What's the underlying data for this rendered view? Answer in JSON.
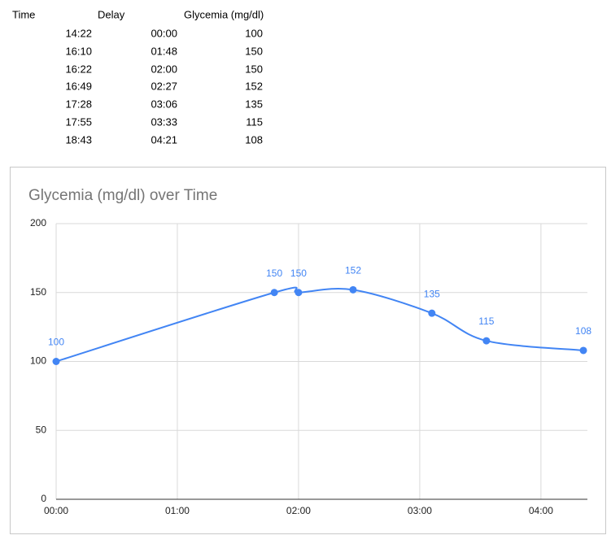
{
  "table": {
    "header": [
      "Time",
      "Delay",
      "Glycemia (mg/dl)"
    ],
    "rows": [
      [
        "14:22",
        "00:00",
        "100"
      ],
      [
        "16:10",
        "01:48",
        "150"
      ],
      [
        "16:22",
        "02:00",
        "150"
      ],
      [
        "16:49",
        "02:27",
        "152"
      ],
      [
        "17:28",
        "03:06",
        "135"
      ],
      [
        "17:55",
        "03:33",
        "115"
      ],
      [
        "18:43",
        "04:21",
        "108"
      ]
    ]
  },
  "chart_data": {
    "type": "line",
    "title": "Glycemia (mg/dl) over Time",
    "x": [
      0,
      108,
      120,
      147,
      186,
      213,
      261
    ],
    "series": [
      {
        "name": "Glycemia (mg/dl)",
        "color": "#4285f4",
        "values": [
          100,
          150,
          150,
          152,
          135,
          115,
          108
        ]
      }
    ],
    "xlim": [
      0,
      263
    ],
    "xticks": [
      {
        "value": 0,
        "label": "00:00"
      },
      {
        "value": 60,
        "label": "01:00"
      },
      {
        "value": 120,
        "label": "02:00"
      },
      {
        "value": 180,
        "label": "03:00"
      },
      {
        "value": 240,
        "label": "04:00"
      }
    ],
    "ylim": [
      0,
      200
    ],
    "yticks": [
      0,
      50,
      100,
      150,
      200
    ],
    "grid": true,
    "data_labels": true,
    "smooth": true
  }
}
